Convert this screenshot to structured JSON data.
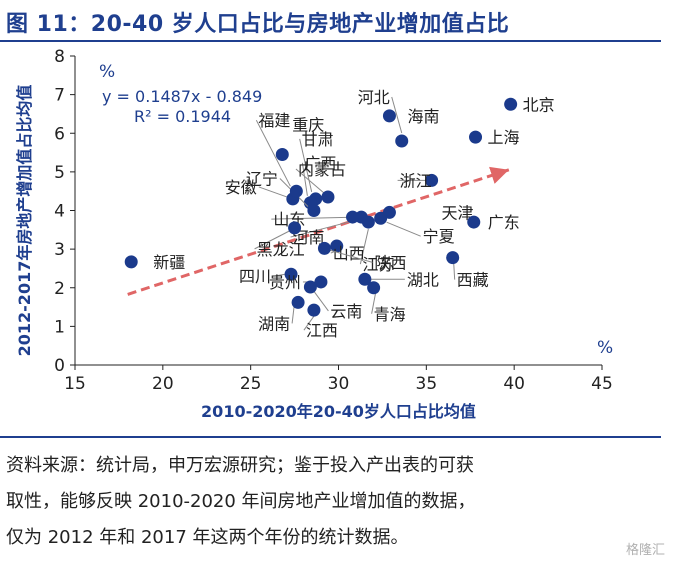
{
  "title": "图 11：20-40 岁人口占比与房地产业增加值占比",
  "source_lines": [
    "资料来源：统计局，申万宏源研究；鉴于投入产出表的可获",
    "取性，能够反映 2010-2020 年间房地产业增加值的数据，",
    "仅为 2012 年和 2017 年这两个年份的统计数据。"
  ],
  "watermark": "格隆汇",
  "colors": {
    "title": "#1F3F8F",
    "marker": "#1B3A8C",
    "trend": "#E06666",
    "axis": "#222222"
  },
  "chart_data": {
    "type": "scatter",
    "xlabel": "2010-2020年20-40岁人口占比均值",
    "ylabel": "2012-2017年房地产增加值占比均值",
    "x_unit": "%",
    "y_unit": "%",
    "xlim": [
      15,
      45
    ],
    "ylim": [
      0,
      8
    ],
    "xticks": [
      15,
      20,
      25,
      30,
      35,
      40,
      45
    ],
    "yticks": [
      0,
      1,
      2,
      3,
      4,
      5,
      6,
      7,
      8
    ],
    "equation": "y = 0.1487x - 0.849",
    "r2": "R² = 0.1944",
    "trend": {
      "slope": 0.1487,
      "intercept": -0.849,
      "x_start": 18.0,
      "x_end": 39.7
    },
    "points": [
      {
        "label": "北京",
        "x": 39.8,
        "y": 6.75
      },
      {
        "label": "上海",
        "x": 37.8,
        "y": 5.9
      },
      {
        "label": "海南",
        "x": 32.9,
        "y": 6.45
      },
      {
        "label": "河北",
        "x": 33.6,
        "y": 5.8
      },
      {
        "label": "重庆",
        "x": 26.8,
        "y": 5.45
      },
      {
        "label": "甘肃",
        "x": 28.7,
        "y": 4.3
      },
      {
        "label": "广西",
        "x": 28.4,
        "y": 4.2
      },
      {
        "label": "辽宁",
        "x": 28.6,
        "y": 4.0
      },
      {
        "label": "安徽",
        "x": 27.4,
        "y": 4.3
      },
      {
        "label": "福建",
        "x": 27.6,
        "y": 4.5
      },
      {
        "label": "内蒙古",
        "x": 29.4,
        "y": 4.35
      },
      {
        "label": "浙江",
        "x": 35.3,
        "y": 4.78
      },
      {
        "label": "天津",
        "x": 32.9,
        "y": 3.95
      },
      {
        "label": "山东",
        "x": 31.3,
        "y": 3.83
      },
      {
        "label": "河南",
        "x": 30.8,
        "y": 3.83
      },
      {
        "label": "宁夏",
        "x": 32.4,
        "y": 3.8
      },
      {
        "label": "广东",
        "x": 37.7,
        "y": 3.7
      },
      {
        "label": "黑龙江",
        "x": 27.5,
        "y": 3.55
      },
      {
        "label": "江苏",
        "x": 31.7,
        "y": 3.7
      },
      {
        "label": "山西",
        "x": 29.9,
        "y": 3.08
      },
      {
        "label": "陕西",
        "x": 29.2,
        "y": 3.02
      },
      {
        "label": "西藏",
        "x": 36.5,
        "y": 2.78
      },
      {
        "label": "新疆",
        "x": 18.2,
        "y": 2.67
      },
      {
        "label": "四川",
        "x": 27.3,
        "y": 2.35
      },
      {
        "label": "湖北",
        "x": 31.5,
        "y": 2.22
      },
      {
        "label": "贵州",
        "x": 29.0,
        "y": 2.15
      },
      {
        "label": "云南",
        "x": 28.4,
        "y": 2.02
      },
      {
        "label": "青海",
        "x": 32.0,
        "y": 2.0
      },
      {
        "label": "湖南",
        "x": 27.7,
        "y": 1.62
      },
      {
        "label": "江西",
        "x": 28.6,
        "y": 1.42
      }
    ]
  }
}
